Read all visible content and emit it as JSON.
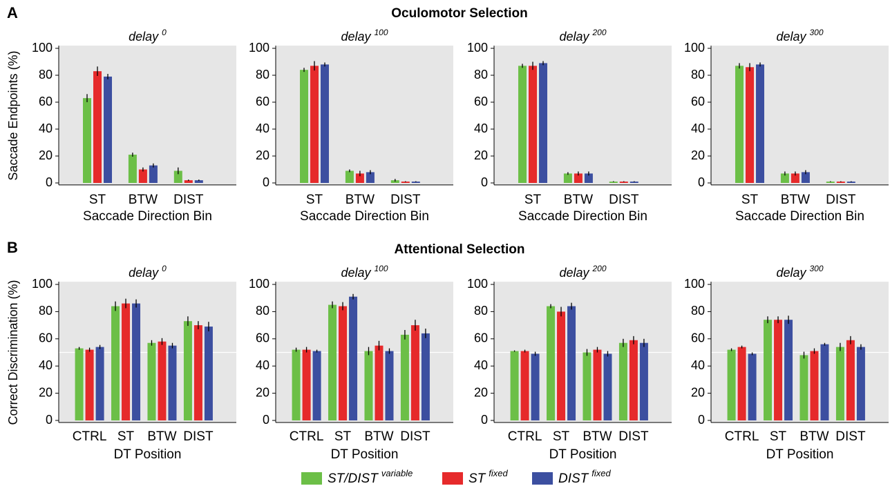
{
  "figure": {
    "panel_a": "A",
    "panel_b": "B",
    "title_a": "Oculomotor Selection",
    "title_b": "Attentional Selection"
  },
  "legend": [
    {
      "name": "ST/DIST",
      "sup": "variable",
      "color": "#6cbf47"
    },
    {
      "name": "ST",
      "sup": "fixed",
      "color": "#e62a2b"
    },
    {
      "name": "DIST",
      "sup": "fixed",
      "color": "#3c4fa0"
    }
  ],
  "chart_data": [
    {
      "type": "bar",
      "title": "delay",
      "title_sup": "0",
      "ylabel": "Saccade Endpoints (%)",
      "xlabel": "Saccade Direction Bin",
      "categories": [
        "ST",
        "BTW",
        "DIST"
      ],
      "series": [
        {
          "values": [
            63,
            21,
            9
          ],
          "errors": [
            3,
            1.5,
            2.5
          ]
        },
        {
          "values": [
            83,
            10,
            2
          ],
          "errors": [
            3.5,
            1.5,
            0.5
          ]
        },
        {
          "values": [
            79,
            13,
            2
          ],
          "errors": [
            2,
            1.5,
            0.5
          ]
        }
      ],
      "ylim": [
        -1.5,
        102
      ],
      "yticks": [
        0,
        20,
        40,
        60,
        80,
        100
      ]
    },
    {
      "type": "bar",
      "title": "delay",
      "title_sup": "100",
      "xlabel": "Saccade Direction Bin",
      "categories": [
        "ST",
        "BTW",
        "DIST"
      ],
      "series": [
        {
          "values": [
            84,
            9,
            2
          ],
          "errors": [
            1.5,
            1,
            1
          ]
        },
        {
          "values": [
            87,
            7,
            1
          ],
          "errors": [
            3.5,
            2,
            0.3
          ]
        },
        {
          "values": [
            88,
            8,
            1
          ],
          "errors": [
            1.5,
            1.5,
            0.3
          ]
        }
      ],
      "ylim": [
        -1.5,
        102
      ],
      "yticks": [
        0,
        20,
        40,
        60,
        80,
        100
      ]
    },
    {
      "type": "bar",
      "title": "delay",
      "title_sup": "200",
      "xlabel": "Saccade Direction Bin",
      "categories": [
        "ST",
        "BTW",
        "DIST"
      ],
      "series": [
        {
          "values": [
            87,
            7,
            1
          ],
          "errors": [
            1.5,
            1,
            0.3
          ]
        },
        {
          "values": [
            87,
            7,
            1
          ],
          "errors": [
            3,
            1.5,
            0.3
          ]
        },
        {
          "values": [
            89,
            7,
            1
          ],
          "errors": [
            1.5,
            1.5,
            0.3
          ]
        }
      ],
      "ylim": [
        -1.5,
        102
      ],
      "yticks": [
        0,
        20,
        40,
        60,
        80,
        100
      ]
    },
    {
      "type": "bar",
      "title": "delay",
      "title_sup": "300",
      "xlabel": "Saccade Direction Bin",
      "categories": [
        "ST",
        "BTW",
        "DIST"
      ],
      "series": [
        {
          "values": [
            87,
            7,
            1
          ],
          "errors": [
            2,
            1.5,
            0.3
          ]
        },
        {
          "values": [
            86,
            7,
            1
          ],
          "errors": [
            3,
            1.5,
            0.3
          ]
        },
        {
          "values": [
            88,
            8,
            1
          ],
          "errors": [
            1.5,
            1.5,
            0.3
          ]
        }
      ],
      "ylim": [
        -1.5,
        102
      ],
      "yticks": [
        0,
        20,
        40,
        60,
        80,
        100
      ]
    },
    {
      "type": "bar",
      "title": "delay",
      "title_sup": "0",
      "ylabel": "Correct Discrimination (%)",
      "xlabel": "DT Position",
      "categories": [
        "CTRL",
        "ST",
        "BTW",
        "DIST"
      ],
      "hline": 50,
      "series": [
        {
          "values": [
            53,
            84,
            57,
            73
          ],
          "errors": [
            1,
            3.5,
            2,
            3.5
          ]
        },
        {
          "values": [
            52,
            86,
            58,
            70
          ],
          "errors": [
            1.5,
            3.5,
            2.5,
            3
          ]
        },
        {
          "values": [
            54,
            86,
            55,
            69
          ],
          "errors": [
            1.5,
            3,
            2,
            3.5
          ]
        }
      ],
      "ylim": [
        -1.5,
        102
      ],
      "yticks": [
        0,
        20,
        40,
        60,
        80,
        100
      ]
    },
    {
      "type": "bar",
      "title": "delay",
      "title_sup": "100",
      "xlabel": "DT Position",
      "categories": [
        "CTRL",
        "ST",
        "BTW",
        "DIST"
      ],
      "hline": 50,
      "series": [
        {
          "values": [
            52,
            85,
            51,
            63
          ],
          "errors": [
            1.5,
            2.5,
            3,
            3.5
          ]
        },
        {
          "values": [
            52,
            84,
            55,
            70
          ],
          "errors": [
            2,
            3,
            3.5,
            4
          ]
        },
        {
          "values": [
            51,
            91,
            51,
            64
          ],
          "errors": [
            1,
            2,
            2,
            3.5
          ]
        }
      ],
      "ylim": [
        -1.5,
        102
      ],
      "yticks": [
        0,
        20,
        40,
        60,
        80,
        100
      ]
    },
    {
      "type": "bar",
      "title": "delay",
      "title_sup": "200",
      "xlabel": "DT Position",
      "categories": [
        "CTRL",
        "ST",
        "BTW",
        "DIST"
      ],
      "hline": 50,
      "series": [
        {
          "values": [
            51,
            84,
            50,
            57
          ],
          "errors": [
            0.5,
            1.5,
            2.5,
            3
          ]
        },
        {
          "values": [
            51,
            80,
            52,
            59
          ],
          "errors": [
            1,
            3.5,
            2,
            3
          ]
        },
        {
          "values": [
            49,
            84,
            49,
            57
          ],
          "errors": [
            1.5,
            2.5,
            2,
            3
          ]
        }
      ],
      "ylim": [
        -1.5,
        102
      ],
      "yticks": [
        0,
        20,
        40,
        60,
        80,
        100
      ]
    },
    {
      "type": "bar",
      "title": "delay",
      "title_sup": "300",
      "xlabel": "DT Position",
      "categories": [
        "CTRL",
        "ST",
        "BTW",
        "DIST"
      ],
      "hline": 50,
      "series": [
        {
          "values": [
            52,
            74,
            48,
            54
          ],
          "errors": [
            1,
            2.5,
            2.5,
            3
          ]
        },
        {
          "values": [
            54,
            74,
            51,
            59
          ],
          "errors": [
            1,
            2.5,
            2,
            3
          ]
        },
        {
          "values": [
            49,
            74,
            56,
            54
          ],
          "errors": [
            1,
            3,
            1,
            2
          ]
        }
      ],
      "ylim": [
        -1.5,
        102
      ],
      "yticks": [
        0,
        20,
        40,
        60,
        80,
        100
      ]
    }
  ]
}
